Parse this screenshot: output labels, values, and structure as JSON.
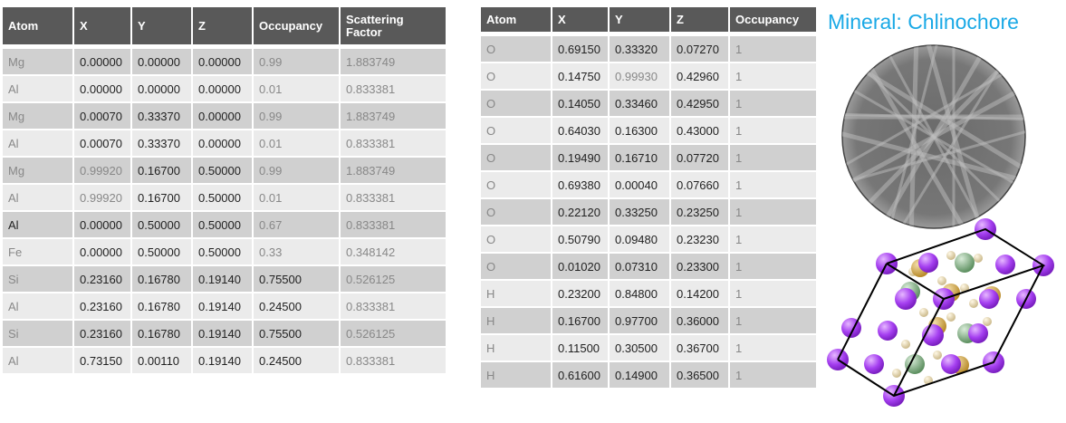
{
  "title": "Mineral: Chlinochore",
  "colors": {
    "accent": "#1aa9e6",
    "header_bg": "#595959",
    "row_odd": "#d0d0d0",
    "row_even": "#ebebeb",
    "muted_text": "#888888"
  },
  "images": {
    "kikuchi_pattern": "diffraction-pattern",
    "crystal_structure": "unit-cell-structure"
  },
  "table1": {
    "headers": [
      "Atom",
      "X",
      "Y",
      "Z",
      "Occupancy",
      "Scattering Factor"
    ],
    "rows": [
      {
        "cells": [
          "Mg",
          "0.00000",
          "0.00000",
          "0.00000",
          "0.99",
          "1.883749"
        ],
        "muted": [
          1,
          0,
          0,
          0,
          1,
          1
        ]
      },
      {
        "cells": [
          "Al",
          "0.00000",
          "0.00000",
          "0.00000",
          "0.01",
          "0.833381"
        ],
        "muted": [
          1,
          0,
          0,
          0,
          1,
          1
        ]
      },
      {
        "cells": [
          "Mg",
          "0.00070",
          "0.33370",
          "0.00000",
          "0.99",
          "1.883749"
        ],
        "muted": [
          1,
          0,
          0,
          0,
          1,
          1
        ]
      },
      {
        "cells": [
          "Al",
          "0.00070",
          "0.33370",
          "0.00000",
          "0.01",
          "0.833381"
        ],
        "muted": [
          1,
          0,
          0,
          0,
          1,
          1
        ]
      },
      {
        "cells": [
          "Mg",
          "0.99920",
          "0.16700",
          "0.50000",
          "0.99",
          "1.883749"
        ],
        "muted": [
          1,
          1,
          0,
          0,
          1,
          1
        ]
      },
      {
        "cells": [
          "Al",
          "0.99920",
          "0.16700",
          "0.50000",
          "0.01",
          "0.833381"
        ],
        "muted": [
          1,
          1,
          0,
          0,
          1,
          1
        ]
      },
      {
        "cells": [
          "Al",
          "0.00000",
          "0.50000",
          "0.50000",
          "0.67",
          "0.833381"
        ],
        "muted": [
          0,
          0,
          0,
          0,
          1,
          1
        ]
      },
      {
        "cells": [
          "Fe",
          "0.00000",
          "0.50000",
          "0.50000",
          "0.33",
          "0.348142"
        ],
        "muted": [
          1,
          0,
          0,
          0,
          1,
          1
        ]
      },
      {
        "cells": [
          "Si",
          "0.23160",
          "0.16780",
          "0.19140",
          "0.75500",
          "0.526125"
        ],
        "muted": [
          1,
          0,
          0,
          0,
          0,
          1
        ]
      },
      {
        "cells": [
          "Al",
          "0.23160",
          "0.16780",
          "0.19140",
          "0.24500",
          "0.833381"
        ],
        "muted": [
          1,
          0,
          0,
          0,
          0,
          1
        ]
      },
      {
        "cells": [
          "Si",
          "0.23160",
          "0.16780",
          "0.19140",
          "0.75500",
          "0.526125"
        ],
        "muted": [
          1,
          0,
          0,
          0,
          0,
          1
        ]
      },
      {
        "cells": [
          "Al",
          "0.73150",
          "0.00110",
          "0.19140",
          "0.24500",
          "0.833381"
        ],
        "muted": [
          1,
          0,
          0,
          0,
          0,
          1
        ]
      }
    ]
  },
  "table2": {
    "headers": [
      "Atom",
      "X",
      "Y",
      "Z",
      "Occupancy"
    ],
    "rows": [
      {
        "cells": [
          "O",
          "0.69150",
          "0.33320",
          "0.07270",
          "1"
        ],
        "muted": [
          1,
          0,
          0,
          0,
          1
        ]
      },
      {
        "cells": [
          "O",
          "0.14750",
          "0.99930",
          "0.42960",
          "1"
        ],
        "muted": [
          1,
          0,
          1,
          0,
          1
        ]
      },
      {
        "cells": [
          "O",
          "0.14050",
          "0.33460",
          "0.42950",
          "1"
        ],
        "muted": [
          1,
          0,
          0,
          0,
          1
        ]
      },
      {
        "cells": [
          "O",
          "0.64030",
          "0.16300",
          "0.43000",
          "1"
        ],
        "muted": [
          1,
          0,
          0,
          0,
          1
        ]
      },
      {
        "cells": [
          "O",
          "0.19490",
          "0.16710",
          "0.07720",
          "1"
        ],
        "muted": [
          1,
          0,
          0,
          0,
          1
        ]
      },
      {
        "cells": [
          "O",
          "0.69380",
          "0.00040",
          "0.07660",
          "1"
        ],
        "muted": [
          1,
          0,
          0,
          0,
          1
        ]
      },
      {
        "cells": [
          "O",
          "0.22120",
          "0.33250",
          "0.23250",
          "1"
        ],
        "muted": [
          1,
          0,
          0,
          0,
          1
        ]
      },
      {
        "cells": [
          "O",
          "0.50790",
          "0.09480",
          "0.23230",
          "1"
        ],
        "muted": [
          1,
          0,
          0,
          0,
          1
        ]
      },
      {
        "cells": [
          "O",
          "0.01020",
          "0.07310",
          "0.23300",
          "1"
        ],
        "muted": [
          1,
          0,
          0,
          0,
          1
        ]
      },
      {
        "cells": [
          "H",
          "0.23200",
          "0.84800",
          "0.14200",
          "1"
        ],
        "muted": [
          1,
          0,
          0,
          0,
          1
        ]
      },
      {
        "cells": [
          "H",
          "0.16700",
          "0.97700",
          "0.36000",
          "1"
        ],
        "muted": [
          1,
          0,
          0,
          0,
          1
        ]
      },
      {
        "cells": [
          "H",
          "0.11500",
          "0.30500",
          "0.36700",
          "1"
        ],
        "muted": [
          1,
          0,
          0,
          0,
          1
        ]
      },
      {
        "cells": [
          "H",
          "0.61600",
          "0.14900",
          "0.36500",
          "1"
        ],
        "muted": [
          1,
          0,
          0,
          0,
          1
        ]
      }
    ]
  }
}
